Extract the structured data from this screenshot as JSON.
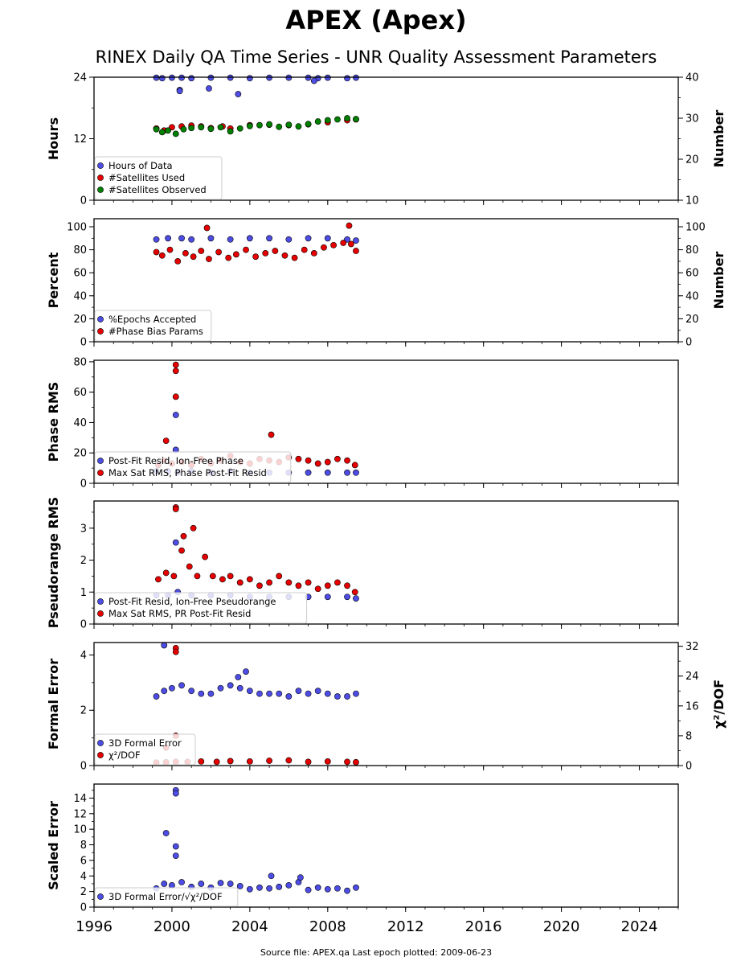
{
  "page": {
    "title": "APEX (Apex)",
    "subtitle": "RINEX Daily QA Time Series - UNR Quality Assessment Parameters",
    "footer": "Source file: APEX.qa Last epoch plotted: 2009-06-23"
  },
  "colors": {
    "blue": "#4d4de6",
    "red": "#e60000",
    "green": "#008000"
  },
  "chart_data": [
    {
      "type": "scatter",
      "id": "hours",
      "ylabel": "Hours",
      "ylabel_right": "Number",
      "ylim": [
        0,
        24
      ],
      "yticks": [
        0,
        12,
        24
      ],
      "ylim_right": [
        10,
        40
      ],
      "yticks_right": [
        10,
        20,
        30,
        40
      ],
      "xlim": [
        1996,
        2026
      ],
      "xticks": [
        1996,
        2000,
        2004,
        2008,
        2012,
        2016,
        2020,
        2024
      ],
      "series": [
        {
          "name": "Hours of Data",
          "axis": "left",
          "color": "blue",
          "x": [
            1999.2,
            1999.5,
            2000.0,
            2000.5,
            2001.0,
            2002.0,
            2003.0,
            2004.0,
            2005.0,
            2006.0,
            2007.0,
            2007.5,
            2008.0,
            2009.0,
            2009.45,
            2000.4,
            2000.4,
            2001.9,
            2003.4,
            2007.3
          ],
          "y": [
            23.9,
            23.8,
            23.9,
            23.9,
            23.8,
            23.9,
            23.9,
            23.8,
            23.9,
            23.9,
            23.9,
            23.8,
            23.9,
            23.8,
            23.9,
            21.5,
            21.3,
            21.8,
            20.7,
            23.3
          ]
        },
        {
          "name": "#Satellites Used",
          "axis": "right",
          "color": "red",
          "x": [
            1999.2,
            1999.6,
            2000.0,
            2000.5,
            2001.0,
            2001.5,
            2002.0,
            2002.6,
            2003.0,
            2004.0,
            2005.0,
            2006.0,
            2007.0,
            2008.0,
            2009.0,
            2009.45
          ],
          "y": [
            27.5,
            27.0,
            27.8,
            28.0,
            28.2,
            28.0,
            27.6,
            28.0,
            27.5,
            28.3,
            28.4,
            28.3,
            28.5,
            29.0,
            29.5,
            29.7
          ]
        },
        {
          "name": "#Satellites Observed",
          "axis": "right",
          "color": "green",
          "x": [
            1999.2,
            1999.5,
            1999.8,
            2000.2,
            2000.6,
            2001.0,
            2001.5,
            2002.0,
            2002.5,
            2003.0,
            2003.5,
            2004.0,
            2004.5,
            2005.0,
            2005.5,
            2006.0,
            2006.5,
            2007.0,
            2007.5,
            2008.0,
            2008.5,
            2009.0,
            2009.45
          ],
          "y": [
            27.3,
            26.6,
            27.0,
            26.2,
            27.3,
            27.6,
            27.8,
            27.4,
            27.8,
            26.8,
            27.5,
            28.1,
            28.3,
            28.5,
            27.9,
            28.4,
            28.0,
            28.6,
            29.2,
            29.5,
            29.7,
            30.0,
            29.8
          ]
        }
      ],
      "legend": "lower-left"
    },
    {
      "type": "scatter",
      "id": "percent",
      "ylabel": "Percent",
      "ylabel_right": "Number",
      "ylim": [
        0,
        107
      ],
      "yticks": [
        0,
        20,
        40,
        60,
        80,
        100
      ],
      "ylim_right": [
        0,
        107
      ],
      "yticks_right": [
        0,
        20,
        40,
        60,
        80,
        100
      ],
      "xlim": [
        1996,
        2026
      ],
      "series": [
        {
          "name": "%Epochs Accepted",
          "axis": "left",
          "color": "blue",
          "x": [
            1999.2,
            1999.8,
            2000.5,
            2001.0,
            2002.0,
            2003.0,
            2004.0,
            2005.0,
            2006.0,
            2007.0,
            2008.0,
            2009.0,
            2009.45
          ],
          "y": [
            89,
            90,
            90,
            89,
            90,
            89,
            90,
            90,
            89,
            90,
            90,
            89,
            88
          ]
        },
        {
          "name": "#Phase Bias Params",
          "axis": "right",
          "color": "red",
          "x": [
            1999.2,
            1999.5,
            1999.9,
            2000.3,
            2000.7,
            2001.1,
            2001.5,
            2001.9,
            2002.4,
            2002.9,
            2003.3,
            2003.8,
            2004.3,
            2004.8,
            2005.3,
            2005.8,
            2006.3,
            2006.8,
            2007.3,
            2007.8,
            2008.3,
            2008.8,
            2009.2,
            2009.45,
            2001.8,
            2009.1
          ],
          "y": [
            78,
            75,
            80,
            70,
            77,
            74,
            79,
            72,
            78,
            73,
            76,
            80,
            74,
            77,
            79,
            75,
            73,
            80,
            77,
            82,
            84,
            86,
            85,
            79,
            99,
            101
          ]
        }
      ],
      "legend": "lower-left"
    },
    {
      "type": "scatter",
      "id": "phase",
      "ylabel": "Phase RMS",
      "ylim": [
        0,
        81
      ],
      "yticks": [
        0,
        20,
        40,
        60,
        80
      ],
      "xlim": [
        1996,
        2026
      ],
      "series": [
        {
          "name": "Post-Fit Resid, Ion-Free Phase",
          "axis": "left",
          "color": "blue",
          "x": [
            1999.2,
            1999.8,
            2000.3,
            2001.0,
            2002.0,
            2003.0,
            2004.0,
            2005.0,
            2006.0,
            2007.0,
            2008.0,
            2009.0,
            2009.45,
            2000.2,
            2000.2
          ],
          "y": [
            8,
            8,
            7,
            8,
            7,
            8,
            7,
            7,
            7,
            7,
            7,
            7,
            7,
            45,
            22
          ]
        },
        {
          "name": "Max Sat RMS, Phase Post-Fit Resid",
          "axis": "left",
          "color": "red",
          "x": [
            1999.3,
            1999.6,
            2000.0,
            2000.5,
            2001.0,
            2001.5,
            2002.0,
            2002.5,
            2003.0,
            2003.5,
            2004.0,
            2004.5,
            2005.0,
            2005.5,
            2006.0,
            2006.5,
            2007.0,
            2007.5,
            2008.0,
            2008.5,
            2009.0,
            2009.4,
            2000.2,
            2000.2,
            2000.2,
            2005.1,
            1999.7
          ],
          "y": [
            12,
            15,
            13,
            14,
            12,
            16,
            13,
            15,
            18,
            14,
            13,
            16,
            15,
            14,
            17,
            16,
            15,
            13,
            14,
            16,
            15,
            12,
            78,
            74,
            57,
            32,
            28
          ]
        }
      ],
      "legend": "lower-left"
    },
    {
      "type": "scatter",
      "id": "pseudorange",
      "ylabel": "Pseudorange RMS",
      "ylim": [
        0,
        3.85
      ],
      "yticks": [
        0,
        1,
        2,
        3
      ],
      "xlim": [
        1996,
        2026
      ],
      "series": [
        {
          "name": "Post-Fit Resid, Ion-Free Pseudorange",
          "axis": "left",
          "color": "blue",
          "x": [
            1999.2,
            1999.8,
            2000.3,
            2001.0,
            2002.0,
            2003.0,
            2004.0,
            2005.0,
            2006.0,
            2007.0,
            2008.0,
            2009.0,
            2009.45,
            2000.2
          ],
          "y": [
            0.9,
            0.9,
            1.0,
            0.9,
            0.9,
            0.9,
            0.85,
            0.85,
            0.85,
            0.85,
            0.85,
            0.85,
            0.8,
            2.55
          ]
        },
        {
          "name": "Max Sat RMS, PR Post-Fit Resid",
          "axis": "left",
          "color": "red",
          "x": [
            1999.3,
            1999.7,
            2000.1,
            2000.5,
            2000.9,
            2001.3,
            2001.7,
            2002.1,
            2002.6,
            2003.0,
            2003.5,
            2004.0,
            2004.5,
            2005.0,
            2005.5,
            2006.0,
            2006.5,
            2007.0,
            2007.5,
            2008.0,
            2008.5,
            2009.0,
            2009.4,
            2000.2,
            2000.2,
            2000.6,
            2001.1
          ],
          "y": [
            1.4,
            1.6,
            1.5,
            2.3,
            1.8,
            1.5,
            2.1,
            1.5,
            1.4,
            1.5,
            1.3,
            1.4,
            1.2,
            1.3,
            1.5,
            1.3,
            1.2,
            1.3,
            1.1,
            1.2,
            1.3,
            1.2,
            1.0,
            3.65,
            3.6,
            2.75,
            3.0
          ]
        }
      ],
      "legend": "lower-left"
    },
    {
      "type": "scatter",
      "id": "formal",
      "ylabel": "Formal Error",
      "ylabel_right": "χ²/DOF",
      "ylim": [
        0,
        4.45
      ],
      "yticks": [
        0,
        2,
        4
      ],
      "ylim_right": [
        0,
        33
      ],
      "yticks_right": [
        0,
        8,
        16,
        24,
        32
      ],
      "xlim": [
        1996,
        2026
      ],
      "series": [
        {
          "name": "3D Formal Error",
          "axis": "left",
          "color": "blue",
          "x": [
            1999.2,
            1999.6,
            2000.0,
            2000.5,
            2001.0,
            2001.5,
            2002.0,
            2002.5,
            2003.0,
            2003.5,
            2004.0,
            2004.5,
            2005.0,
            2005.5,
            2006.0,
            2006.5,
            2007.0,
            2007.5,
            2008.0,
            2008.5,
            2009.0,
            2009.45,
            1999.6,
            2003.8,
            2003.4
          ],
          "y": [
            2.5,
            2.7,
            2.8,
            2.9,
            2.7,
            2.6,
            2.6,
            2.8,
            2.9,
            2.8,
            2.7,
            2.6,
            2.6,
            2.6,
            2.5,
            2.7,
            2.6,
            2.7,
            2.6,
            2.5,
            2.5,
            2.6,
            4.35,
            3.4,
            3.2
          ]
        },
        {
          "name": "χ²/DOF",
          "axis": "right",
          "color": "red",
          "x": [
            1999.2,
            1999.7,
            2000.2,
            2000.8,
            2001.5,
            2002.3,
            2003.0,
            2004.0,
            2005.0,
            2006.0,
            2007.0,
            2008.0,
            2009.0,
            2009.45,
            2000.2,
            2000.2,
            2000.2,
            1999.7
          ],
          "y": [
            0.8,
            0.9,
            1.0,
            1.0,
            1.1,
            1.0,
            1.2,
            1.1,
            1.3,
            1.4,
            1.0,
            1.1,
            1.0,
            0.9,
            31.5,
            30.5,
            8.0,
            4.8
          ]
        }
      ],
      "legend": "lower-left"
    },
    {
      "type": "scatter",
      "id": "scaled",
      "ylabel": "Scaled Error",
      "ylim": [
        0,
        15.8
      ],
      "yticks": [
        0,
        2,
        4,
        6,
        8,
        10,
        12,
        14
      ],
      "xlim": [
        1996,
        2026
      ],
      "series": [
        {
          "name": "3D Formal Error/√χ²/DOF",
          "axis": "left",
          "color": "blue",
          "x": [
            1999.2,
            1999.6,
            2000.0,
            2000.5,
            2001.0,
            2001.5,
            2002.0,
            2002.5,
            2003.0,
            2003.5,
            2004.0,
            2004.5,
            2005.0,
            2005.5,
            2006.0,
            2006.5,
            2007.0,
            2007.5,
            2008.0,
            2008.5,
            2009.0,
            2009.45,
            2000.2,
            2000.2,
            1999.7,
            2000.2,
            2000.2,
            2005.1,
            2006.6
          ],
          "y": [
            2.4,
            3.0,
            2.8,
            3.2,
            2.6,
            3.0,
            2.5,
            3.1,
            3.0,
            2.7,
            2.3,
            2.5,
            2.4,
            2.6,
            2.8,
            3.2,
            2.2,
            2.5,
            2.3,
            2.4,
            2.1,
            2.5,
            15.0,
            14.6,
            9.5,
            7.8,
            6.6,
            4.0,
            3.8
          ]
        }
      ],
      "legend": "lower-left"
    }
  ]
}
